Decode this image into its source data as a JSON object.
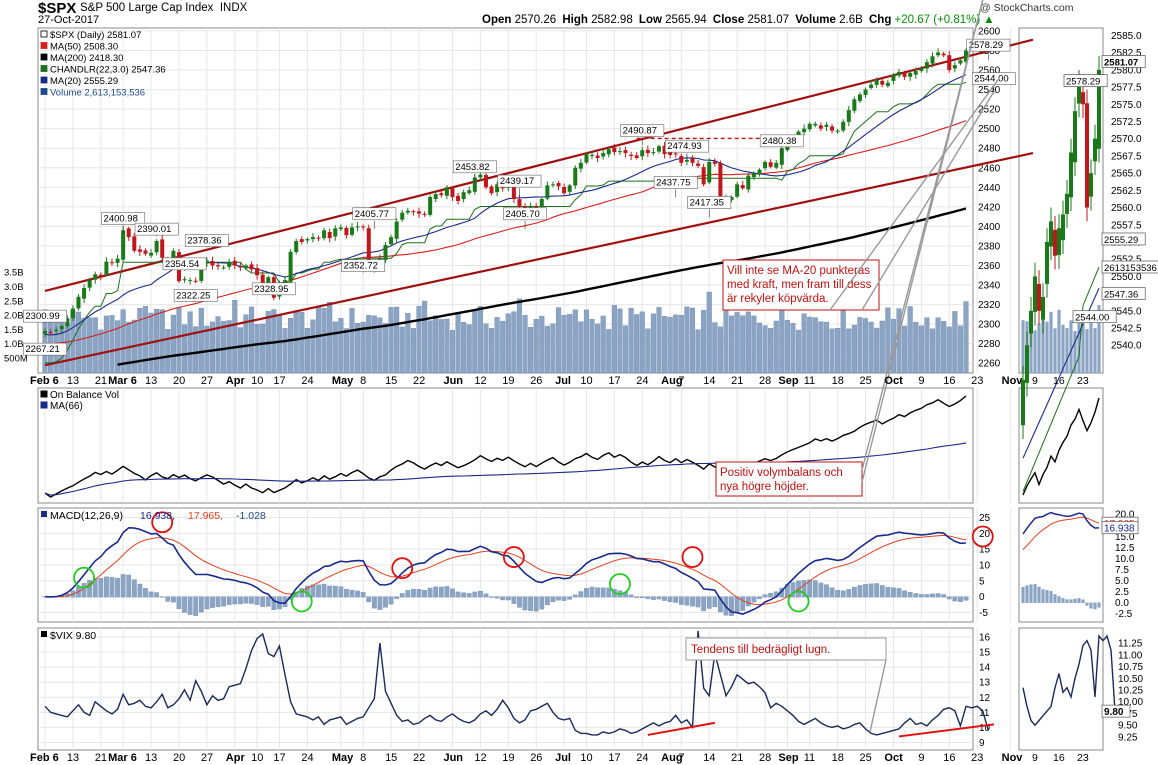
{
  "header": {
    "symbol": "$SPX",
    "name": "S&P 500 Large Cap Index",
    "exchange": "INDX",
    "date": "27-Oct-2017",
    "brand": "@ StockCharts.com",
    "open_label": "Open",
    "open": "2570.26",
    "high_label": "High",
    "high": "2582.98",
    "low_label": "Low",
    "low": "2565.94",
    "close_label": "Close",
    "close": "2581.07",
    "volume_label": "Volume",
    "volume": "2.6B",
    "chg_label": "Chg",
    "chg": "+20.67 (+0.81%)",
    "chg_arrow": "▲"
  },
  "colors": {
    "up": "#1a7a1a",
    "down": "#c0171c",
    "ma50": "#d42020",
    "ma200": "#000000",
    "chandelier": "#1e6e1e",
    "ma20": "#1a2a8a",
    "volume": "#8ca4c4",
    "channel": "#a01010",
    "macd": "#1a2a8a",
    "signal": "#e04020",
    "ring_red": "#e01010",
    "ring_green": "#22cc22"
  },
  "chart_data": [
    {
      "type": "candlestick",
      "title": "$SPX (Daily) 2581.07",
      "legend": [
        {
          "label": "$SPX (Daily) 2581.07",
          "color": "#000000"
        },
        {
          "label": "MA(50) 2508.30",
          "color": "#d42020"
        },
        {
          "label": "MA(200) 2418.30",
          "color": "#000000"
        },
        {
          "label": "CHANDLR(22,3.0) 2547.36",
          "color": "#1e6e1e"
        },
        {
          "label": "MA(20) 2555.29",
          "color": "#1a2a8a"
        },
        {
          "label": "Volume 2,613,153,536",
          "color": "#1a4a8a"
        }
      ],
      "ylim": [
        2250,
        2603
      ],
      "y_ticks": [
        2260,
        2280,
        2300,
        2320,
        2340,
        2360,
        2380,
        2400,
        2420,
        2440,
        2460,
        2480,
        2500,
        2520,
        2540,
        2560,
        2580,
        2600
      ],
      "volume_ticks": [
        "500M",
        "1.0B",
        "1.5B",
        "2.0B",
        "2.5B",
        "3.0B",
        "3.5B"
      ],
      "x_labels": [
        {
          "day": 0,
          "text": "Feb 6",
          "bold": true
        },
        {
          "day": 5,
          "text": "13"
        },
        {
          "day": 10,
          "text": "21"
        },
        {
          "day": 14,
          "text": "Mar 6",
          "bold": true
        },
        {
          "day": 19,
          "text": "13"
        },
        {
          "day": 24,
          "text": "20"
        },
        {
          "day": 29,
          "text": "27"
        },
        {
          "day": 34,
          "text": "Apr",
          "bold": true
        },
        {
          "day": 38,
          "text": "10"
        },
        {
          "day": 42,
          "text": "17"
        },
        {
          "day": 47,
          "text": "24"
        },
        {
          "day": 53,
          "text": "May",
          "bold": true
        },
        {
          "day": 57,
          "text": "8"
        },
        {
          "day": 62,
          "text": "15"
        },
        {
          "day": 67,
          "text": "22"
        },
        {
          "day": 73,
          "text": "Jun",
          "bold": true
        },
        {
          "day": 78,
          "text": "12"
        },
        {
          "day": 83,
          "text": "19"
        },
        {
          "day": 88,
          "text": "26"
        },
        {
          "day": 93,
          "text": "Jul",
          "bold": true
        },
        {
          "day": 97,
          "text": "10"
        },
        {
          "day": 102,
          "text": "17"
        },
        {
          "day": 107,
          "text": "24"
        },
        {
          "day": 112,
          "text": "Aug",
          "bold": true
        },
        {
          "day": 114,
          "text": "7"
        },
        {
          "day": 119,
          "text": "14"
        },
        {
          "day": 124,
          "text": "21"
        },
        {
          "day": 129,
          "text": "28"
        },
        {
          "day": 133,
          "text": "Sep",
          "bold": true
        },
        {
          "day": 137,
          "text": "11"
        },
        {
          "day": 142,
          "text": "18"
        },
        {
          "day": 147,
          "text": "25"
        },
        {
          "day": 152,
          "text": "Oct",
          "bold": true
        },
        {
          "day": 157,
          "text": "9"
        },
        {
          "day": 162,
          "text": "16"
        },
        {
          "day": 167,
          "text": "23"
        },
        {
          "day": 173,
          "text": "Nov",
          "bold": true
        }
      ],
      "close": [
        2293,
        2292,
        2294,
        2298,
        2306,
        2316,
        2328,
        2337,
        2345,
        2351,
        2349,
        2364,
        2363,
        2367,
        2396,
        2389,
        2375,
        2374,
        2372,
        2373,
        2385,
        2368,
        2364,
        2375,
        2344,
        2346,
        2345,
        2344,
        2363,
        2365,
        2360,
        2359,
        2358,
        2363,
        2360,
        2358,
        2360,
        2356,
        2350,
        2342,
        2348,
        2327,
        2340,
        2345,
        2374,
        2385,
        2384,
        2387,
        2389,
        2388,
        2396,
        2388,
        2398,
        2399,
        2391,
        2399,
        2400,
        2399,
        2358,
        2356,
        2367,
        2381,
        2389,
        2405,
        2414,
        2416,
        2415,
        2413,
        2412,
        2430,
        2433,
        2432,
        2440,
        2430,
        2426,
        2435,
        2437,
        2450,
        2453,
        2440,
        2434,
        2443,
        2439,
        2445,
        2428,
        2420,
        2418,
        2421,
        2419,
        2428,
        2442,
        2443,
        2441,
        2434,
        2442,
        2460,
        2465,
        2474,
        2473,
        2470,
        2475,
        2479,
        2476,
        2477,
        2475,
        2472,
        2470,
        2478,
        2475,
        2476,
        2482,
        2474,
        2473,
        2474,
        2465,
        2468,
        2465,
        2462,
        2443,
        2466,
        2464,
        2430,
        2426,
        2430,
        2443,
        2439,
        2452,
        2454,
        2458,
        2466,
        2461,
        2465,
        2480,
        2489,
        2491,
        2497,
        2500,
        2505,
        2505,
        2500,
        2504,
        2498,
        2498,
        2507,
        2519,
        2530,
        2535,
        2540,
        2545,
        2550,
        2545,
        2547,
        2555,
        2558,
        2553,
        2557,
        2559,
        2562,
        2568,
        2574,
        2578,
        2575,
        2560,
        2565,
        2570,
        2580
      ],
      "ma50_end": 2508.3,
      "ma200_end": 2418.3,
      "chandelier_end": 2547.36,
      "ma20_end": 2555.29,
      "volume_end": 2613153536,
      "price_annotations": [
        {
          "day": 0,
          "price": 2300.99,
          "text": "2300.99"
        },
        {
          "day": 0,
          "price": 2267.21,
          "text": "2267.21"
        },
        {
          "day": 14,
          "price": 2400.98,
          "text": "2400.98"
        },
        {
          "day": 20,
          "price": 2390.01,
          "text": "2390.01"
        },
        {
          "day": 25,
          "price": 2354.54,
          "text": "2354.54"
        },
        {
          "day": 29,
          "price": 2378.36,
          "text": "2378.36"
        },
        {
          "day": 27,
          "price": 2322.25,
          "text": "2322.25"
        },
        {
          "day": 41,
          "price": 2328.95,
          "text": "2328.95"
        },
        {
          "day": 59,
          "price": 2405.77,
          "text": "2405.77"
        },
        {
          "day": 57,
          "price": 2352.72,
          "text": "2352.72"
        },
        {
          "day": 77,
          "price": 2453.82,
          "text": "2453.82"
        },
        {
          "day": 85,
          "price": 2439.17,
          "text": "2439.17"
        },
        {
          "day": 86,
          "price": 2405.7,
          "text": "2405.70"
        },
        {
          "day": 107,
          "price": 2490.87,
          "text": "2490.87"
        },
        {
          "day": 115,
          "price": 2474.93,
          "text": "2474.93"
        },
        {
          "day": 113,
          "price": 2437.75,
          "text": "2437.75"
        },
        {
          "day": 119,
          "price": 2417.35,
          "text": "2417.35"
        },
        {
          "day": 132,
          "price": 2480.38,
          "text": "2480.38"
        },
        {
          "day": 169,
          "price": 2578.29,
          "text": "2578.29"
        },
        {
          "day": 170,
          "price": 2544.0,
          "text": "2544.00"
        }
      ],
      "channel_upper": [
        {
          "day": 0,
          "price": 2334
        },
        {
          "day": 177,
          "price": 2591
        }
      ],
      "channel_lower": [
        {
          "day": 0,
          "price": 2258
        },
        {
          "day": 177,
          "price": 2475
        }
      ],
      "resistance_line": [
        {
          "day": 106,
          "price": 2490
        },
        {
          "day": 135,
          "price": 2490
        }
      ],
      "annotations": [
        "Vill inte se MA-20 punkteras med kraft, men fram till dess är rekyler köpvärda."
      ]
    },
    {
      "type": "line",
      "legend": [
        {
          "label": "On Balance Vol",
          "color": "#000000"
        },
        {
          "label": "MA(66)",
          "color": "#1a2a8a"
        }
      ],
      "annotations": [
        "Positiv volymbalans och nya högre höjder."
      ]
    },
    {
      "type": "line",
      "legend_prefix": "MACD(12,26,9)",
      "values": [
        {
          "text": "16.938",
          "color": "#1a2a8a"
        },
        {
          "text": "17.965",
          "color": "#e04020"
        },
        {
          "text": "-1.028",
          "color": "#1a4a8a"
        }
      ],
      "ylim": [
        -8,
        28
      ],
      "y_ticks": [
        -5,
        0,
        5,
        10,
        15,
        20,
        25
      ],
      "macd_end": 16.938,
      "signal_end": 17.965,
      "histogram_end": -1.028,
      "marked_crossovers": [
        {
          "day": 7,
          "value": 6,
          "kind": "bullish"
        },
        {
          "day": 21,
          "value": 23.5,
          "kind": "bearish"
        },
        {
          "day": 46,
          "value": -1.5,
          "kind": "bullish"
        },
        {
          "day": 64,
          "value": 9,
          "kind": "bearish"
        },
        {
          "day": 84,
          "value": 12.5,
          "kind": "bearish"
        },
        {
          "day": 103,
          "value": 4,
          "kind": "bullish"
        },
        {
          "day": 116,
          "value": 12.5,
          "kind": "bearish"
        },
        {
          "day": 135,
          "value": -1.5,
          "kind": "bullish"
        },
        {
          "day": 168,
          "value": 19,
          "kind": "bearish"
        }
      ]
    },
    {
      "type": "line",
      "title": "$VIX 9.80",
      "ylim": [
        8.5,
        16.6
      ],
      "y_ticks": [
        9,
        10,
        11,
        12,
        13,
        14,
        15,
        16
      ],
      "last_value": "9.80",
      "vix": [
        11.4,
        11.0,
        10.9,
        10.8,
        10.7,
        11.1,
        11.5,
        11.0,
        10.8,
        11.7,
        11.4,
        11.1,
        10.9,
        11.2,
        12.2,
        11.5,
        11.6,
        11.8,
        11.4,
        11.3,
        11.7,
        12.2,
        11.3,
        11.5,
        11.9,
        12.5,
        11.8,
        13.1,
        12.4,
        11.5,
        12.1,
        11.8,
        11.9,
        12.7,
        12.8,
        12.9,
        13.9,
        15.1,
        15.9,
        16.2,
        14.9,
        14.7,
        15.4,
        13.5,
        11.7,
        10.9,
        10.8,
        10.7,
        10.5,
        10.7,
        10.2,
        10.5,
        10.6,
        10.7,
        10.2,
        10.4,
        10.6,
        10.7,
        11.3,
        11.9,
        15.6,
        12.4,
        11.6,
        10.8,
        10.4,
        10.5,
        10.2,
        10.3,
        10.6,
        10.8,
        10.5,
        10.4,
        10.7,
        10.9,
        10.6,
        10.4,
        10.3,
        10.5,
        10.9,
        11.1,
        10.8,
        11.2,
        11.8,
        11.3,
        10.6,
        10.3,
        10.5,
        11.1,
        11.2,
        11.4,
        11.6,
        11.0,
        10.6,
        10.5,
        10.6,
        9.8,
        9.6,
        9.6,
        9.5,
        9.5,
        9.7,
        9.6,
        9.7,
        9.9,
        9.8,
        9.6,
        9.7,
        9.9,
        10.1,
        10.3,
        10.1,
        10.3,
        10.4,
        10.8,
        10.3,
        10.5,
        10.0,
        16.4,
        12.6,
        12.1,
        14.9,
        13.5,
        12.1,
        12.7,
        13.5,
        13.2,
        12.9,
        13.0,
        12.7,
        12.3,
        11.3,
        11.6,
        11.4,
        11.1,
        10.8,
        10.4,
        10.2,
        10.4,
        10.6,
        10.3,
        10.1,
        10.0,
        10.1,
        9.9,
        10.0,
        10.2,
        10.3,
        9.9,
        9.6,
        9.5,
        9.6,
        9.7,
        9.8,
        9.9,
        10.3,
        10.6,
        10.2,
        10.3,
        10.1,
        10.5,
        10.8,
        11.2,
        11.3,
        11.1,
        10.1,
        11.4,
        11.3,
        11.4,
        11.1,
        9.8
      ],
      "annotations": [
        "Tendens till bedrägligt lugn."
      ]
    }
  ],
  "side": {
    "x_labels": [
      "9",
      "16",
      "23"
    ],
    "price_ticks": [
      "2540.0",
      "2542.5",
      "2545.0",
      "2547.5",
      "2550.0",
      "2552.5",
      "2555.0",
      "2557.5",
      "2560.0",
      "2562.5",
      "2565.0",
      "2567.5",
      "2570.0",
      "2572.5",
      "2575.0",
      "2577.5",
      "2580.0",
      "2582.5",
      "2585.0"
    ],
    "price_tags": [
      "2578.29",
      "2581.07",
      "2555.29",
      "2613153536",
      "2547.36",
      "2544.00"
    ],
    "macd_ticks": [
      "-2.5",
      "0.0",
      "2.5",
      "5.0",
      "7.5",
      "10.0",
      "12.5",
      "15.0",
      "17.5",
      "20.0"
    ],
    "macd_tags": [
      "17.965",
      "16.938"
    ],
    "vix_ticks": [
      "9.25",
      "9.50",
      "9.75",
      "10.00",
      "10.25",
      "10.50",
      "10.75",
      "11.00",
      "11.25"
    ],
    "vix_tag": "9.80"
  }
}
